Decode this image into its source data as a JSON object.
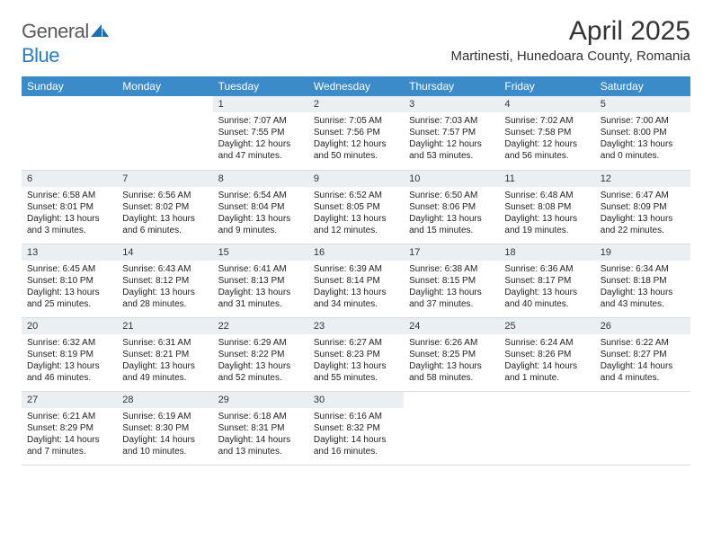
{
  "logo": {
    "text_a": "General",
    "text_b": "Blue"
  },
  "title": "April 2025",
  "location": "Martinesti, Hunedoara County, Romania",
  "colors": {
    "header_bg": "#3b8bc8",
    "daynum_bg": "#eceff1",
    "rule": "#dcdcdc",
    "text": "#333333",
    "logo_gray": "#5a5a5a",
    "logo_blue": "#2b7bbf"
  },
  "day_names": [
    "Sunday",
    "Monday",
    "Tuesday",
    "Wednesday",
    "Thursday",
    "Friday",
    "Saturday"
  ],
  "weeks": [
    [
      null,
      null,
      {
        "n": "1",
        "sr": "7:07 AM",
        "ss": "7:55 PM",
        "dl": "12 hours and 47 minutes."
      },
      {
        "n": "2",
        "sr": "7:05 AM",
        "ss": "7:56 PM",
        "dl": "12 hours and 50 minutes."
      },
      {
        "n": "3",
        "sr": "7:03 AM",
        "ss": "7:57 PM",
        "dl": "12 hours and 53 minutes."
      },
      {
        "n": "4",
        "sr": "7:02 AM",
        "ss": "7:58 PM",
        "dl": "12 hours and 56 minutes."
      },
      {
        "n": "5",
        "sr": "7:00 AM",
        "ss": "8:00 PM",
        "dl": "13 hours and 0 minutes."
      }
    ],
    [
      {
        "n": "6",
        "sr": "6:58 AM",
        "ss": "8:01 PM",
        "dl": "13 hours and 3 minutes."
      },
      {
        "n": "7",
        "sr": "6:56 AM",
        "ss": "8:02 PM",
        "dl": "13 hours and 6 minutes."
      },
      {
        "n": "8",
        "sr": "6:54 AM",
        "ss": "8:04 PM",
        "dl": "13 hours and 9 minutes."
      },
      {
        "n": "9",
        "sr": "6:52 AM",
        "ss": "8:05 PM",
        "dl": "13 hours and 12 minutes."
      },
      {
        "n": "10",
        "sr": "6:50 AM",
        "ss": "8:06 PM",
        "dl": "13 hours and 15 minutes."
      },
      {
        "n": "11",
        "sr": "6:48 AM",
        "ss": "8:08 PM",
        "dl": "13 hours and 19 minutes."
      },
      {
        "n": "12",
        "sr": "6:47 AM",
        "ss": "8:09 PM",
        "dl": "13 hours and 22 minutes."
      }
    ],
    [
      {
        "n": "13",
        "sr": "6:45 AM",
        "ss": "8:10 PM",
        "dl": "13 hours and 25 minutes."
      },
      {
        "n": "14",
        "sr": "6:43 AM",
        "ss": "8:12 PM",
        "dl": "13 hours and 28 minutes."
      },
      {
        "n": "15",
        "sr": "6:41 AM",
        "ss": "8:13 PM",
        "dl": "13 hours and 31 minutes."
      },
      {
        "n": "16",
        "sr": "6:39 AM",
        "ss": "8:14 PM",
        "dl": "13 hours and 34 minutes."
      },
      {
        "n": "17",
        "sr": "6:38 AM",
        "ss": "8:15 PM",
        "dl": "13 hours and 37 minutes."
      },
      {
        "n": "18",
        "sr": "6:36 AM",
        "ss": "8:17 PM",
        "dl": "13 hours and 40 minutes."
      },
      {
        "n": "19",
        "sr": "6:34 AM",
        "ss": "8:18 PM",
        "dl": "13 hours and 43 minutes."
      }
    ],
    [
      {
        "n": "20",
        "sr": "6:32 AM",
        "ss": "8:19 PM",
        "dl": "13 hours and 46 minutes."
      },
      {
        "n": "21",
        "sr": "6:31 AM",
        "ss": "8:21 PM",
        "dl": "13 hours and 49 minutes."
      },
      {
        "n": "22",
        "sr": "6:29 AM",
        "ss": "8:22 PM",
        "dl": "13 hours and 52 minutes."
      },
      {
        "n": "23",
        "sr": "6:27 AM",
        "ss": "8:23 PM",
        "dl": "13 hours and 55 minutes."
      },
      {
        "n": "24",
        "sr": "6:26 AM",
        "ss": "8:25 PM",
        "dl": "13 hours and 58 minutes."
      },
      {
        "n": "25",
        "sr": "6:24 AM",
        "ss": "8:26 PM",
        "dl": "14 hours and 1 minute."
      },
      {
        "n": "26",
        "sr": "6:22 AM",
        "ss": "8:27 PM",
        "dl": "14 hours and 4 minutes."
      }
    ],
    [
      {
        "n": "27",
        "sr": "6:21 AM",
        "ss": "8:29 PM",
        "dl": "14 hours and 7 minutes."
      },
      {
        "n": "28",
        "sr": "6:19 AM",
        "ss": "8:30 PM",
        "dl": "14 hours and 10 minutes."
      },
      {
        "n": "29",
        "sr": "6:18 AM",
        "ss": "8:31 PM",
        "dl": "14 hours and 13 minutes."
      },
      {
        "n": "30",
        "sr": "6:16 AM",
        "ss": "8:32 PM",
        "dl": "14 hours and 16 minutes."
      },
      null,
      null,
      null
    ]
  ],
  "labels": {
    "sunrise": "Sunrise:",
    "sunset": "Sunset:",
    "daylight": "Daylight:"
  }
}
